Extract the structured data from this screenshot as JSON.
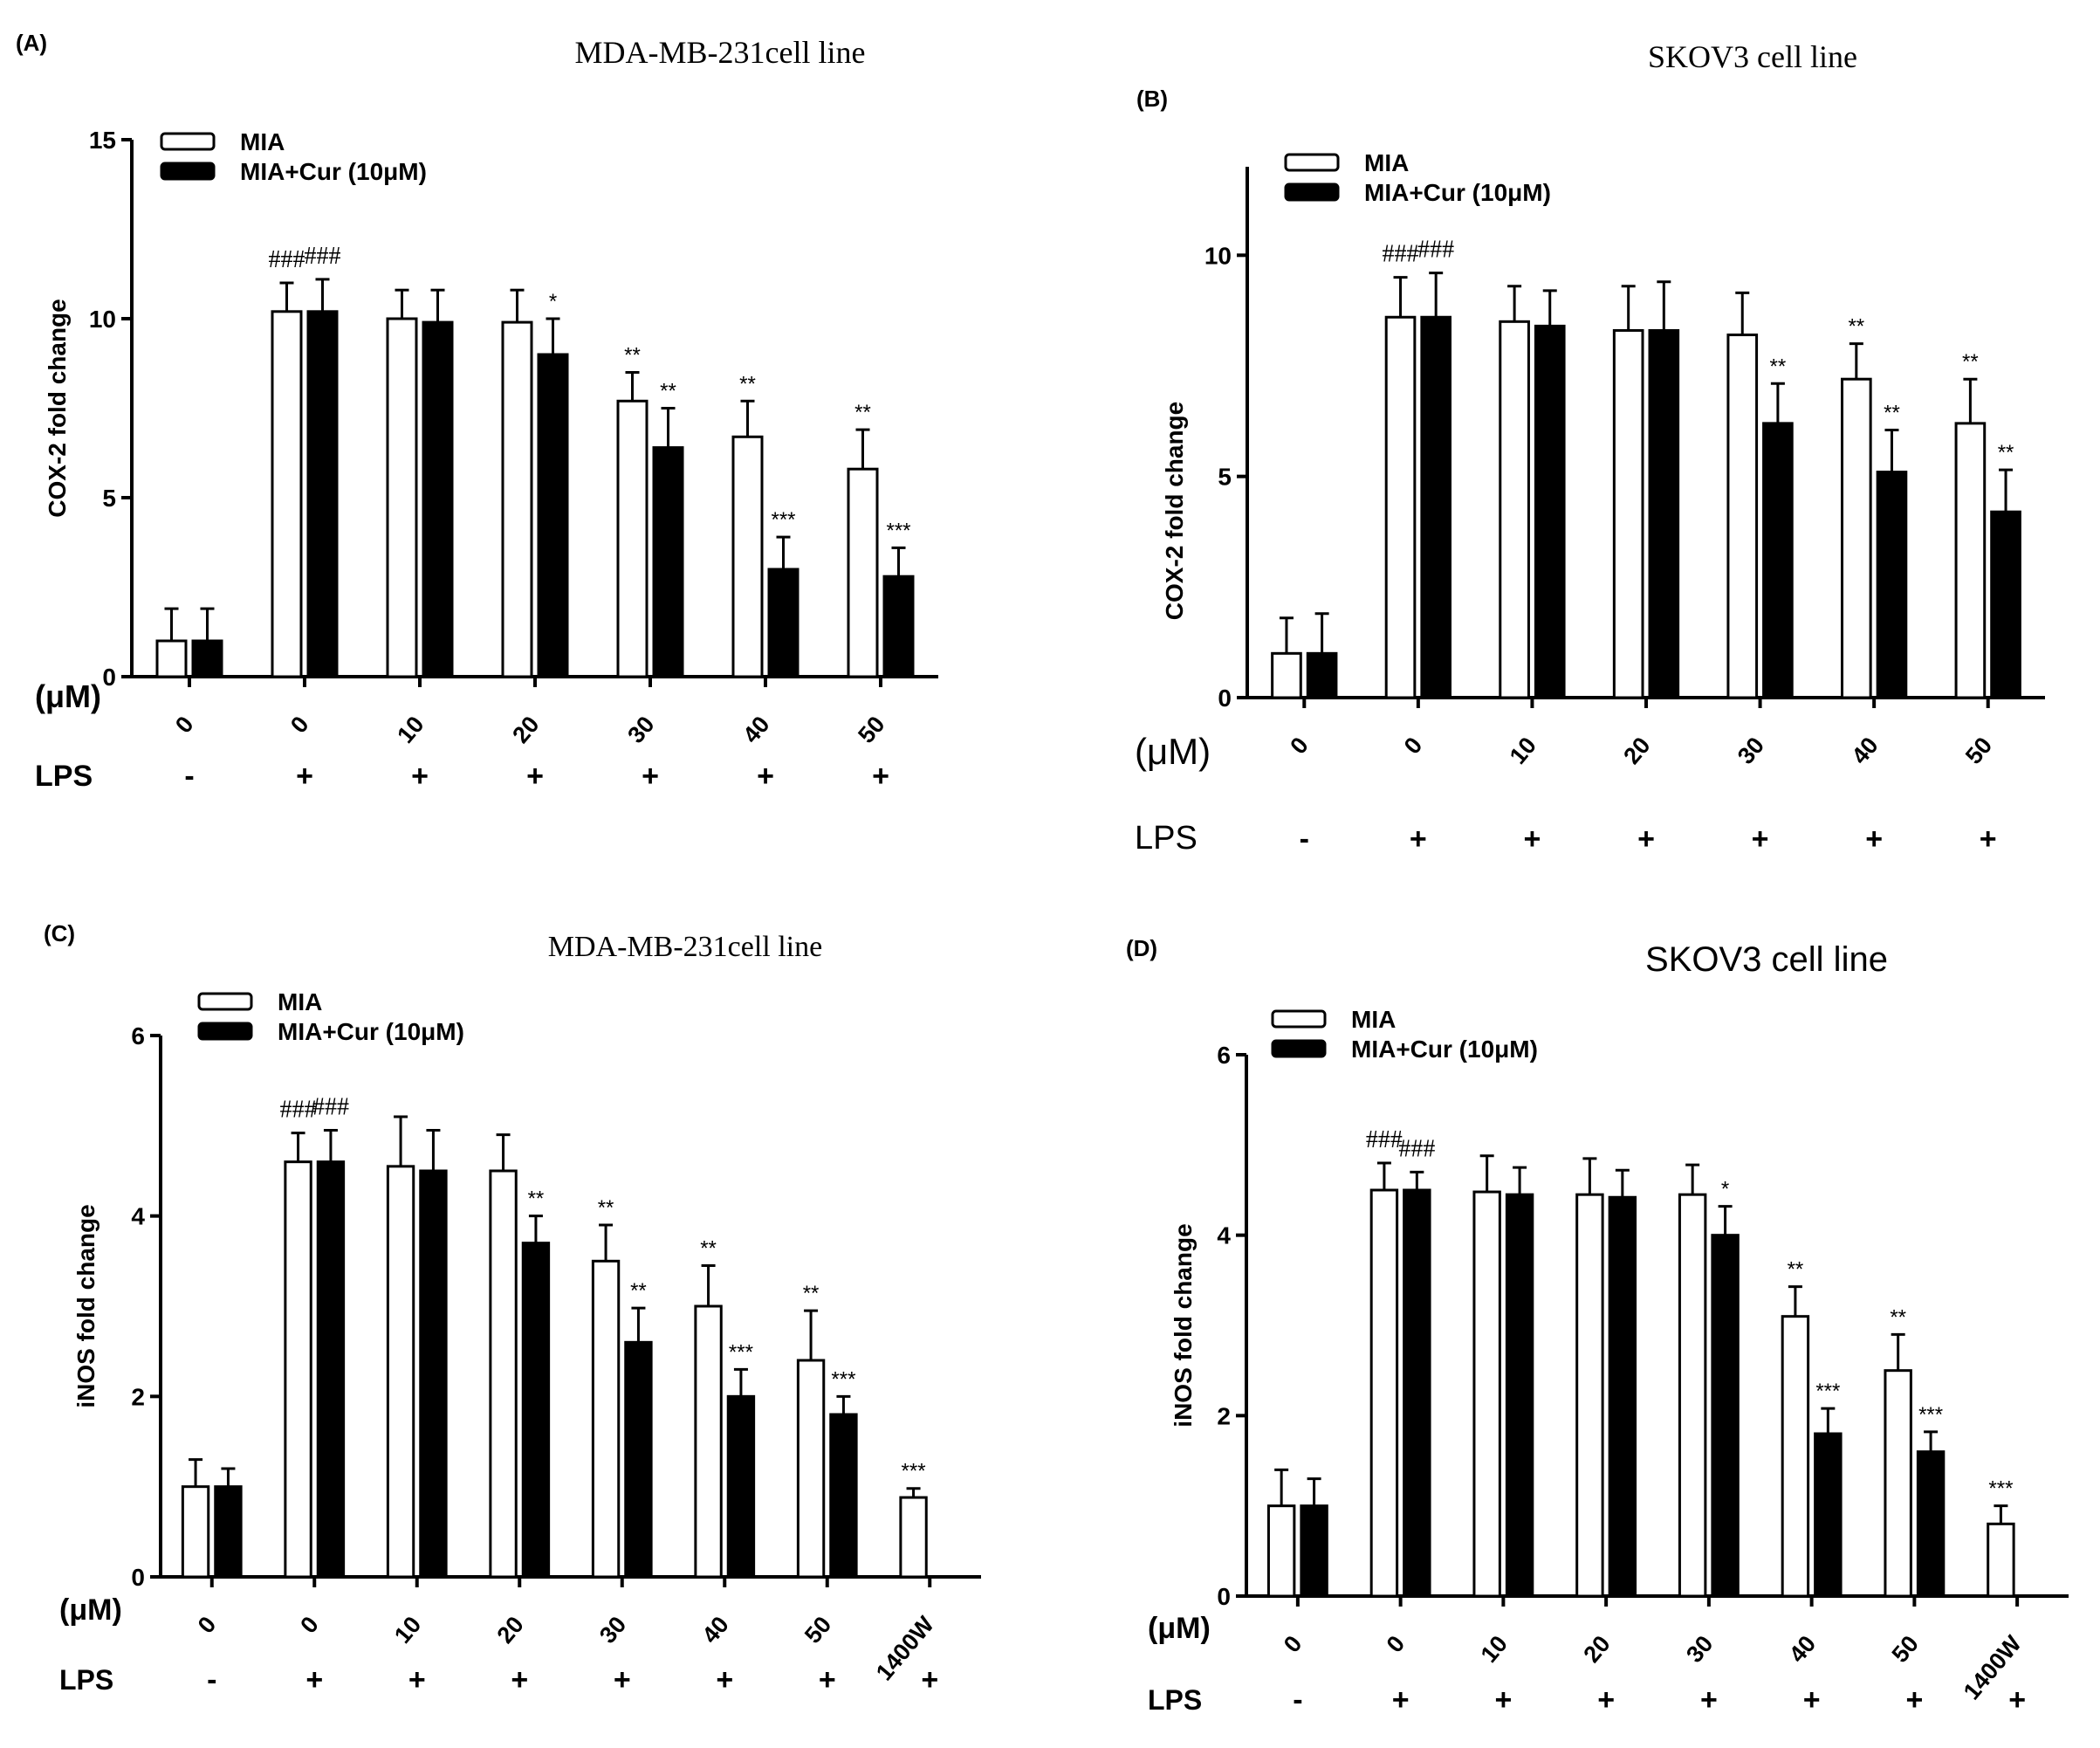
{
  "chart_data": [
    {
      "panel": "(A)",
      "type": "bar",
      "title": "MDA-MB-231cell line",
      "ylabel": "COX-2 fold change",
      "ylim": [
        0,
        15
      ],
      "yticks": [
        0,
        5,
        10,
        15
      ],
      "xrow_label": "(μM)",
      "categories": [
        "0",
        "0",
        "10",
        "20",
        "30",
        "40",
        "50"
      ],
      "lps_label": "LPS",
      "lps": [
        "-",
        "+",
        "+",
        "+",
        "+",
        "+",
        "+"
      ],
      "series": [
        {
          "name": "MIA",
          "fill": "#ffffff",
          "values": [
            1.0,
            10.2,
            10.0,
            9.9,
            7.7,
            6.7,
            5.8
          ],
          "errors": [
            0.9,
            0.8,
            0.8,
            0.9,
            0.8,
            1.0,
            1.1
          ],
          "annotations": [
            "",
            "###",
            "",
            "",
            "**",
            "**",
            "**"
          ]
        },
        {
          "name": "MIA+Cur (10μM)",
          "fill": "#000000",
          "values": [
            1.0,
            10.2,
            9.9,
            9.0,
            6.4,
            3.0,
            2.8
          ],
          "errors": [
            0.9,
            0.9,
            0.9,
            1.0,
            1.1,
            0.9,
            0.8
          ],
          "annotations": [
            "",
            "###",
            "",
            "*",
            "**",
            "***",
            "***"
          ]
        }
      ],
      "legend": "top-left"
    },
    {
      "panel": "(B)",
      "type": "bar",
      "title": "SKOV3 cell line",
      "ylabel": "COX-2 fold change",
      "ylim": [
        0,
        12
      ],
      "yticks": [
        0,
        5,
        10
      ],
      "xrow_label": "(μM)",
      "categories": [
        "0",
        "0",
        "10",
        "20",
        "30",
        "40",
        "50"
      ],
      "lps_label": "LPS",
      "lps": [
        "-",
        "+",
        "+",
        "+",
        "+",
        "+",
        "+"
      ],
      "series": [
        {
          "name": "MIA",
          "fill": "#ffffff",
          "values": [
            1.0,
            8.6,
            8.5,
            8.3,
            8.2,
            7.2,
            6.2
          ],
          "errors": [
            0.8,
            0.9,
            0.8,
            1.0,
            0.95,
            0.8,
            1.0
          ],
          "annotations": [
            "",
            "###",
            "",
            "",
            "",
            "**",
            "**"
          ]
        },
        {
          "name": "MIA+Cur (10μM)",
          "fill": "#000000",
          "values": [
            1.0,
            8.6,
            8.4,
            8.3,
            6.2,
            5.1,
            4.2
          ],
          "errors": [
            0.9,
            1.0,
            0.8,
            1.1,
            0.9,
            0.95,
            0.95
          ],
          "annotations": [
            "",
            "###",
            "",
            "",
            "**",
            "**",
            "**"
          ]
        }
      ],
      "legend": "top-left"
    },
    {
      "panel": "(C)",
      "type": "bar",
      "title": "MDA-MB-231cell line",
      "ylabel": "iNOS fold change",
      "ylim": [
        0,
        6
      ],
      "yticks": [
        0,
        2,
        4,
        6
      ],
      "xrow_label": "(μM)",
      "categories": [
        "0",
        "0",
        "10",
        "20",
        "30",
        "40",
        "50",
        "1400W"
      ],
      "lps_label": "LPS",
      "lps": [
        "-",
        "+",
        "+",
        "+",
        "+",
        "+",
        "+",
        "+"
      ],
      "series": [
        {
          "name": "MIA",
          "fill": "#ffffff",
          "values": [
            1.0,
            4.6,
            4.55,
            4.5,
            3.5,
            3.0,
            2.4,
            0.88
          ],
          "errors": [
            0.3,
            0.32,
            0.55,
            0.4,
            0.4,
            0.45,
            0.55,
            0.1
          ],
          "annotations": [
            "",
            "###",
            "",
            "",
            "**",
            "**",
            "**",
            "***"
          ]
        },
        {
          "name": "MIA+Cur (10μM)",
          "fill": "#000000",
          "values": [
            1.0,
            4.6,
            4.5,
            3.7,
            2.6,
            2.0,
            1.8,
            null
          ],
          "errors": [
            0.2,
            0.35,
            0.45,
            0.3,
            0.38,
            0.3,
            0.2,
            null
          ],
          "annotations": [
            "",
            "###",
            "",
            "**",
            "**",
            "***",
            "***",
            ""
          ]
        }
      ],
      "legend": "top-left"
    },
    {
      "panel": "(D)",
      "type": "bar",
      "title": "SKOV3 cell line",
      "ylabel": "iNOS fold change",
      "ylim": [
        0,
        6
      ],
      "yticks": [
        0,
        2,
        4,
        6
      ],
      "xrow_label": "(μM)",
      "categories": [
        "0",
        "0",
        "10",
        "20",
        "30",
        "40",
        "50",
        "1400W"
      ],
      "lps_label": "LPS",
      "lps": [
        "-",
        "+",
        "+",
        "+",
        "+",
        "+",
        "+",
        "+"
      ],
      "series": [
        {
          "name": "MIA",
          "fill": "#ffffff",
          "values": [
            1.0,
            4.5,
            4.48,
            4.45,
            4.45,
            3.1,
            2.5,
            0.8
          ],
          "errors": [
            0.4,
            0.3,
            0.4,
            0.4,
            0.33,
            0.33,
            0.4,
            0.2
          ],
          "annotations": [
            "",
            "###",
            "",
            "",
            "",
            "**",
            "**",
            "***"
          ]
        },
        {
          "name": "MIA+Cur (10μM)",
          "fill": "#000000",
          "values": [
            1.0,
            4.5,
            4.45,
            4.42,
            4.0,
            1.8,
            1.6,
            null
          ],
          "errors": [
            0.3,
            0.2,
            0.3,
            0.3,
            0.32,
            0.28,
            0.22,
            null
          ],
          "annotations": [
            "",
            "###",
            "",
            "",
            "*",
            "***",
            "***",
            ""
          ]
        }
      ],
      "legend": "top-left"
    }
  ]
}
